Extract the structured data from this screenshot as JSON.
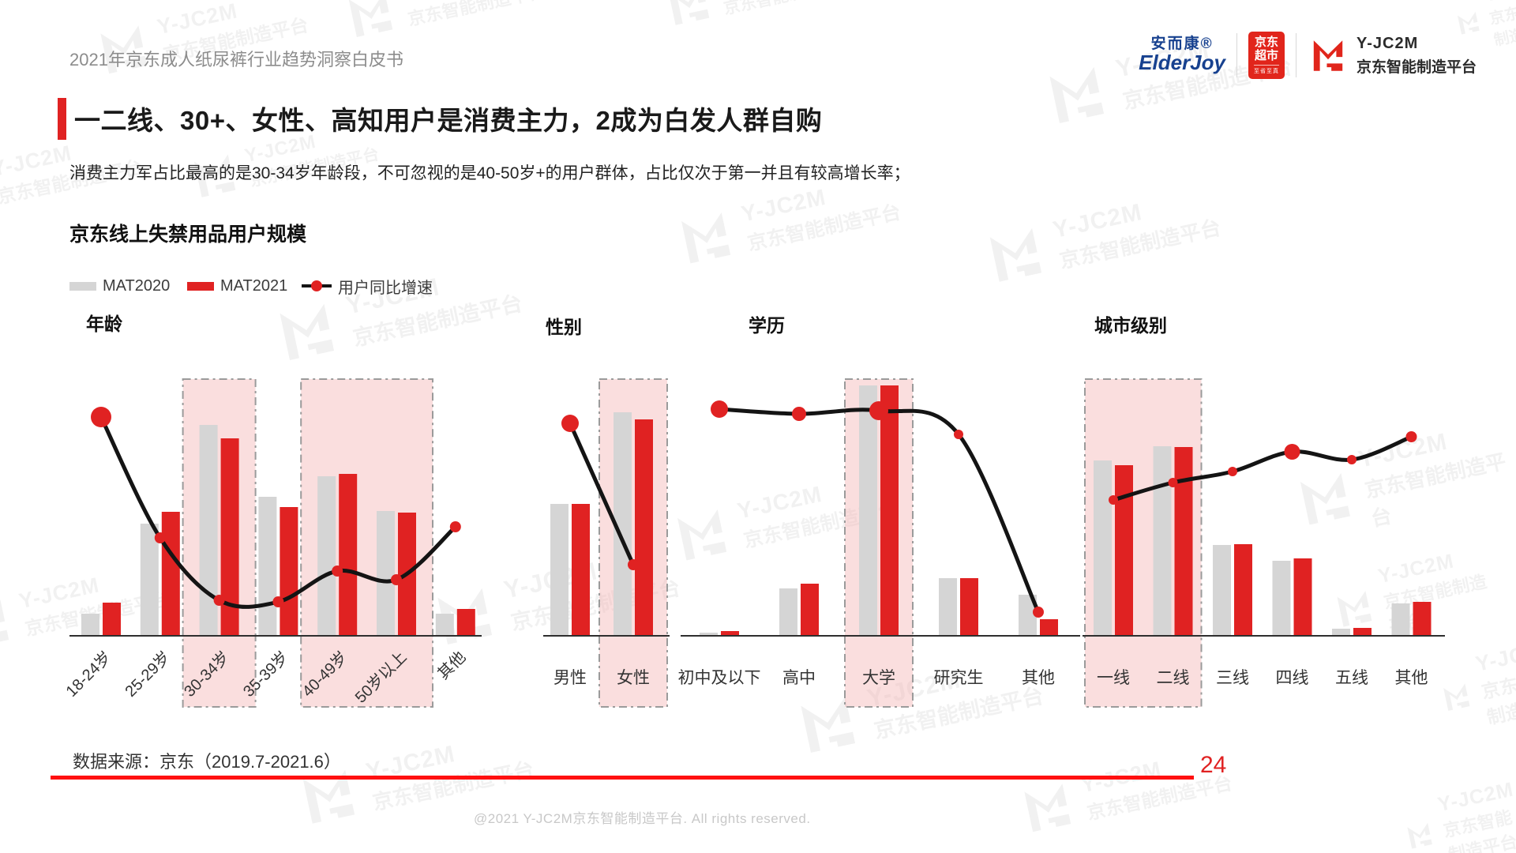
{
  "page": {
    "header": "2021年京东成人纸尿裤行业趋势洞察白皮书",
    "title": "一二线、30+、女性、高知用户是消费主力，2成为白发人群自购",
    "subtitle": "消费主力军占比最高的是30-34岁年龄段，不可忽视的是40-50岁+的用户群体，占比仅次于第一并且有较高增长率；",
    "section_title": "京东线上失禁用品用户规模",
    "source": "数据来源：京东（2019.7-2021.6）",
    "page_number": "24",
    "copyright": "@2021 Y-JC2M京东智能制造平台. All rights reserved."
  },
  "logos": {
    "elderjoy_cn": "安而康®",
    "elderjoy_en": "ElderJoy",
    "jd_market_line1": "京东",
    "jd_market_line2": "超市",
    "jd_market_sub": "至省至真",
    "yjc2m_name": "Y-JC2M",
    "yjc2m_sub": "京东智能制造平台"
  },
  "legend": [
    {
      "label": "MAT2020",
      "color": "#d5d5d5"
    },
    {
      "label": "MAT2021",
      "color": "#e02222"
    },
    {
      "label": "用户同比增速"
    }
  ],
  "watermark": {
    "line1": "Y-JC2M",
    "line2": "京东智能制造平台"
  },
  "colors": {
    "bar_gray": "#d5d5d5",
    "bar_red": "#e02222",
    "growth_line": "#141414",
    "dot_red": "#e02222",
    "highlight_fill": "rgba(242,176,176,0.42)",
    "highlight_border": "#9b9b9b",
    "axis": "#2e2e2e",
    "label": "#333333",
    "logo_red": "#e1251b"
  },
  "chart_data": {
    "type": "bar",
    "series_names": [
      "MAT2020",
      "MAT2021",
      "用户同比增速"
    ],
    "note": "no numeric axis shown in source; bar and line heights are pixel heights above the baseline as drawn",
    "charts": [
      {
        "id": "age",
        "title": "年龄",
        "categories": [
          "18-24岁",
          "25-29岁",
          "30-34岁",
          "35-39岁",
          "40-49岁",
          "50岁以上",
          "其他"
        ],
        "mat2020_h": [
          28,
          142,
          267,
          176,
          202,
          158,
          28
        ],
        "mat2021_h": [
          42,
          157,
          250,
          163,
          205,
          156,
          34
        ],
        "growth_line_h": [
          277,
          124,
          45,
          43,
          82,
          71,
          138
        ],
        "dot_r": [
          13,
          7,
          7,
          7,
          7,
          7,
          7
        ],
        "highlight_groups": [
          [
            2,
            2
          ],
          [
            4,
            5
          ]
        ]
      },
      {
        "id": "gender",
        "title": "性别",
        "categories": [
          "男性",
          "女性"
        ],
        "mat2020_h": [
          167,
          283
        ],
        "mat2021_h": [
          167,
          274
        ],
        "growth_line_h": [
          269,
          90
        ],
        "dot_r": [
          11,
          7
        ],
        "highlight_groups": [
          [
            1,
            1
          ]
        ]
      },
      {
        "id": "edu",
        "title": "学历",
        "categories": [
          "初中及以下",
          "高中",
          "大学",
          "研究生",
          "其他"
        ],
        "mat2020_h": [
          4,
          60,
          317,
          73,
          52
        ],
        "mat2021_h": [
          6,
          66,
          317,
          73,
          21
        ],
        "growth_line_h": [
          287,
          281,
          285,
          255,
          30
        ],
        "dot_r": [
          11,
          9,
          12,
          6,
          7
        ],
        "highlight_groups": [
          [
            2,
            2
          ]
        ]
      },
      {
        "id": "city",
        "title": "城市级别",
        "categories": [
          "一线",
          "二线",
          "三线",
          "四线",
          "五线",
          "其他"
        ],
        "mat2020_h": [
          222,
          240,
          115,
          95,
          9,
          41
        ],
        "mat2021_h": [
          216,
          239,
          116,
          98,
          10,
          43
        ],
        "growth_line_h": [
          172,
          194,
          208,
          233,
          223,
          252
        ],
        "dot_r": [
          6,
          6,
          6,
          10,
          6,
          7
        ],
        "highlight_groups": [
          [
            0,
            1
          ]
        ]
      }
    ]
  }
}
